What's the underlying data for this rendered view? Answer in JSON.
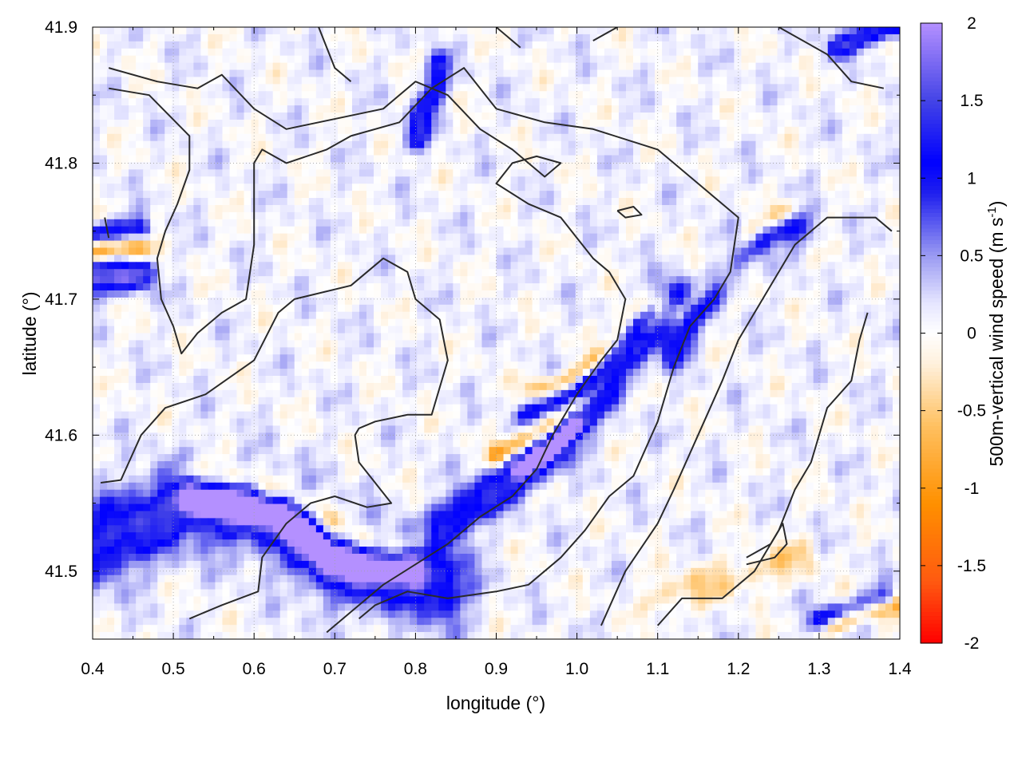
{
  "chart_data": {
    "type": "heatmap",
    "title": "",
    "xlabel": "longitude (°)",
    "ylabel": "latitude (°)",
    "xlim": [
      0.4,
      1.4
    ],
    "ylim": [
      41.45,
      41.9
    ],
    "x_ticks": [
      {
        "value": 0.4,
        "label": "0.4"
      },
      {
        "value": 0.5,
        "label": "0.5"
      },
      {
        "value": 0.6,
        "label": "0.6"
      },
      {
        "value": 0.7,
        "label": "0.7"
      },
      {
        "value": 0.8,
        "label": "0.8"
      },
      {
        "value": 0.9,
        "label": "0.9"
      },
      {
        "value": 1.0,
        "label": "1.0"
      },
      {
        "value": 1.1,
        "label": "1.1"
      },
      {
        "value": 1.2,
        "label": "1.2"
      },
      {
        "value": 1.3,
        "label": "1.3"
      },
      {
        "value": 1.4,
        "label": "1.4"
      }
    ],
    "y_ticks": [
      {
        "value": 41.5,
        "label": "41.5"
      },
      {
        "value": 41.6,
        "label": "41.6"
      },
      {
        "value": 41.7,
        "label": "41.7"
      },
      {
        "value": 41.8,
        "label": "41.8"
      },
      {
        "value": 41.9,
        "label": "41.9"
      }
    ],
    "grid": true,
    "colorbar": {
      "label_main": "500m-vertical wind speed (m s",
      "label_sup": "-1",
      "label_end": ")",
      "range": [
        -2,
        2
      ],
      "ticks": [
        {
          "value": 2,
          "label": "2"
        },
        {
          "value": 1.5,
          "label": "1.5"
        },
        {
          "value": 1,
          "label": "1"
        },
        {
          "value": 0.5,
          "label": "0.5"
        },
        {
          "value": 0,
          "label": "0"
        },
        {
          "value": -0.5,
          "label": "-0.5"
        },
        {
          "value": -1,
          "label": "-1"
        },
        {
          "value": -1.5,
          "label": "-1.5"
        },
        {
          "value": -2,
          "label": "-2"
        }
      ],
      "colors": [
        {
          "value": -2,
          "color": "#ff0000"
        },
        {
          "value": -1.6,
          "color": "#ff5a10"
        },
        {
          "value": -1.1,
          "color": "#ff9000"
        },
        {
          "value": -0.6,
          "color": "#ffc060"
        },
        {
          "value": -0.2,
          "color": "#fff0dc"
        },
        {
          "value": 0,
          "color": "#ffffff"
        },
        {
          "value": 0.2,
          "color": "#e4e4ff"
        },
        {
          "value": 0.5,
          "color": "#9a9af2"
        },
        {
          "value": 0.9,
          "color": "#2020ee"
        },
        {
          "value": 1.1,
          "color": "#0000ff"
        },
        {
          "value": 1.5,
          "color": "#4444e6"
        },
        {
          "value": 2,
          "color": "#b490ff"
        }
      ]
    },
    "features": [
      {
        "name": "band-sw",
        "points": [
          [
            0.41,
            41.52
          ],
          [
            0.46,
            41.535
          ],
          [
            0.52,
            41.55
          ],
          [
            0.59,
            41.545
          ],
          [
            0.64,
            41.535
          ],
          [
            0.69,
            41.51
          ],
          [
            0.74,
            41.5
          ],
          [
            0.79,
            41.5
          ],
          [
            0.83,
            41.49
          ]
        ],
        "value": 1.3,
        "width": 0.02
      },
      {
        "name": "band-sw-core",
        "points": [
          [
            0.52,
            41.553
          ],
          [
            0.58,
            41.548
          ],
          [
            0.64,
            41.54
          ],
          [
            0.69,
            41.51
          ],
          [
            0.73,
            41.503
          ],
          [
            0.8,
            41.502
          ]
        ],
        "value": 1.75,
        "width": 0.008
      },
      {
        "name": "band-sw-orange",
        "points": [
          [
            0.52,
            41.572
          ],
          [
            0.6,
            41.565
          ],
          [
            0.66,
            41.55
          ],
          [
            0.71,
            41.53
          ],
          [
            0.75,
            41.518
          ],
          [
            0.8,
            41.516
          ]
        ],
        "value": -0.8,
        "width": 0.008
      },
      {
        "name": "band-ne",
        "points": [
          [
            0.84,
            41.535
          ],
          [
            0.9,
            41.56
          ],
          [
            0.95,
            41.58
          ],
          [
            1.0,
            41.61
          ],
          [
            1.04,
            41.64
          ],
          [
            1.08,
            41.67
          ],
          [
            1.12,
            41.7
          ]
        ],
        "value": 1.25,
        "width": 0.011
      },
      {
        "name": "band-ne-core",
        "points": [
          [
            0.93,
            41.575
          ],
          [
            0.97,
            41.59
          ],
          [
            1.0,
            41.61
          ]
        ],
        "value": 1.8,
        "width": 0.005
      },
      {
        "name": "band-ne-orange",
        "points": [
          [
            0.9,
            41.585
          ],
          [
            0.95,
            41.6
          ],
          [
            0.98,
            41.61
          ],
          [
            1.01,
            41.625
          ],
          [
            1.04,
            41.65
          ],
          [
            1.07,
            41.675
          ],
          [
            1.1,
            41.69
          ]
        ],
        "value": -0.95,
        "width": 0.006
      },
      {
        "name": "band-ne-blue2",
        "points": [
          [
            0.93,
            41.615
          ],
          [
            0.98,
            41.625
          ],
          [
            1.02,
            41.64
          ],
          [
            1.06,
            41.67
          ],
          [
            1.09,
            41.69
          ]
        ],
        "value": 0.9,
        "width": 0.005
      },
      {
        "name": "band-ne-orange2",
        "points": [
          [
            0.94,
            41.635
          ],
          [
            0.99,
            41.64
          ],
          [
            1.03,
            41.66
          ],
          [
            1.07,
            41.69
          ],
          [
            1.11,
            41.7
          ]
        ],
        "value": -0.6,
        "width": 0.005
      },
      {
        "name": "band-east",
        "points": [
          [
            1.12,
            41.66
          ],
          [
            1.16,
            41.7
          ],
          [
            1.2,
            41.73
          ],
          [
            1.24,
            41.75
          ],
          [
            1.28,
            41.752
          ]
        ],
        "value": 1.0,
        "width": 0.008
      },
      {
        "name": "band-east-orange",
        "points": [
          [
            1.13,
            41.69
          ],
          [
            1.18,
            41.72
          ],
          [
            1.22,
            41.75
          ],
          [
            1.26,
            41.765
          ]
        ],
        "value": -0.6,
        "width": 0.006
      },
      {
        "name": "band-west-blue",
        "points": [
          [
            0.4,
            41.748
          ],
          [
            0.46,
            41.752
          ]
        ],
        "value": 1.1,
        "width": 0.006
      },
      {
        "name": "band-west-orange",
        "points": [
          [
            0.4,
            41.735
          ],
          [
            0.46,
            41.738
          ]
        ],
        "value": -1.0,
        "width": 0.006
      },
      {
        "name": "band-west-purple",
        "points": [
          [
            0.4,
            41.715
          ],
          [
            0.46,
            41.718
          ]
        ],
        "value": 1.6,
        "width": 0.008
      },
      {
        "name": "band-north",
        "points": [
          [
            0.8,
            41.82
          ],
          [
            0.82,
            41.85
          ],
          [
            0.83,
            41.87
          ]
        ],
        "value": 1.1,
        "width": 0.008
      },
      {
        "name": "band-ne-top",
        "points": [
          [
            1.32,
            41.885
          ],
          [
            1.36,
            41.895
          ],
          [
            1.4,
            41.9
          ]
        ],
        "value": 1.2,
        "width": 0.006
      },
      {
        "name": "band-se-orange",
        "points": [
          [
            1.1,
            41.48
          ],
          [
            1.16,
            41.49
          ],
          [
            1.22,
            41.5
          ],
          [
            1.28,
            41.51
          ]
        ],
        "value": -0.45,
        "width": 0.01
      },
      {
        "name": "band-se-blue",
        "points": [
          [
            1.3,
            41.465
          ],
          [
            1.34,
            41.47
          ],
          [
            1.38,
            41.48
          ]
        ],
        "value": 1.0,
        "width": 0.006
      },
      {
        "name": "band-se-orange2",
        "points": [
          [
            1.32,
            41.46
          ],
          [
            1.36,
            41.47
          ],
          [
            1.4,
            41.475
          ]
        ],
        "value": -1.0,
        "width": 0.005
      }
    ],
    "contours": [
      [
        [
          0.41,
          41.565
        ],
        [
          0.435,
          41.567
        ],
        [
          0.46,
          41.6
        ],
        [
          0.49,
          41.62
        ],
        [
          0.54,
          41.63
        ],
        [
          0.6,
          41.655
        ],
        [
          0.63,
          41.69
        ],
        [
          0.65,
          41.7
        ],
        [
          0.72,
          41.71
        ],
        [
          0.76,
          41.73
        ],
        [
          0.79,
          41.72
        ],
        [
          0.8,
          41.7
        ],
        [
          0.83,
          41.685
        ],
        [
          0.84,
          41.655
        ],
        [
          0.82,
          41.615
        ],
        [
          0.79,
          41.615
        ],
        [
          0.75,
          41.61
        ],
        [
          0.73,
          41.605
        ],
        [
          0.725,
          41.6
        ],
        [
          0.73,
          41.58
        ],
        [
          0.77,
          41.55
        ],
        [
          0.74,
          41.547
        ],
        [
          0.7,
          41.555
        ],
        [
          0.67,
          41.55
        ],
        [
          0.64,
          41.535
        ],
        [
          0.61,
          41.51
        ],
        [
          0.605,
          41.485
        ],
        [
          0.56,
          41.475
        ],
        [
          0.52,
          41.465
        ]
      ],
      [
        [
          0.42,
          41.855
        ],
        [
          0.47,
          41.85
        ],
        [
          0.52,
          41.82
        ],
        [
          0.52,
          41.795
        ],
        [
          0.505,
          41.77
        ],
        [
          0.49,
          41.75
        ],
        [
          0.48,
          41.73
        ],
        [
          0.485,
          41.7
        ],
        [
          0.5,
          41.68
        ],
        [
          0.51,
          41.66
        ],
        [
          0.53,
          41.675
        ],
        [
          0.56,
          41.69
        ],
        [
          0.59,
          41.7
        ],
        [
          0.6,
          41.74
        ],
        [
          0.6,
          41.8
        ],
        [
          0.61,
          41.81
        ],
        [
          0.64,
          41.8
        ],
        [
          0.69,
          41.81
        ],
        [
          0.72,
          41.82
        ],
        [
          0.78,
          41.83
        ],
        [
          0.82,
          41.855
        ],
        [
          0.86,
          41.87
        ],
        [
          0.9,
          41.84
        ],
        [
          0.96,
          41.83
        ],
        [
          1.02,
          41.825
        ],
        [
          1.1,
          41.81
        ],
        [
          1.16,
          41.78
        ],
        [
          1.2,
          41.76
        ],
        [
          1.19,
          41.72
        ],
        [
          1.17,
          41.7
        ],
        [
          1.14,
          41.68
        ],
        [
          1.12,
          41.65
        ],
        [
          1.1,
          41.61
        ],
        [
          1.07,
          41.57
        ],
        [
          1.04,
          41.555
        ],
        [
          1.01,
          41.53
        ],
        [
          0.98,
          41.51
        ],
        [
          0.94,
          41.49
        ],
        [
          0.9,
          41.485
        ],
        [
          0.84,
          41.48
        ],
        [
          0.79,
          41.485
        ],
        [
          0.75,
          41.475
        ],
        [
          0.73,
          41.465
        ]
      ],
      [
        [
          0.42,
          41.87
        ],
        [
          0.48,
          41.86
        ],
        [
          0.53,
          41.855
        ],
        [
          0.56,
          41.865
        ],
        [
          0.6,
          41.84
        ],
        [
          0.64,
          41.825
        ],
        [
          0.68,
          41.83
        ],
        [
          0.72,
          41.835
        ],
        [
          0.76,
          41.84
        ],
        [
          0.8,
          41.86
        ],
        [
          0.84,
          41.85
        ],
        [
          0.88,
          41.825
        ],
        [
          0.92,
          41.81
        ],
        [
          0.96,
          41.79
        ],
        [
          0.98,
          41.8
        ],
        [
          0.95,
          41.805
        ],
        [
          0.92,
          41.8
        ],
        [
          0.9,
          41.785
        ],
        [
          0.94,
          41.77
        ],
        [
          0.98,
          41.76
        ],
        [
          1.0,
          41.745
        ],
        [
          1.02,
          41.73
        ],
        [
          1.04,
          41.72
        ],
        [
          1.06,
          41.7
        ],
        [
          1.05,
          41.67
        ],
        [
          1.03,
          41.655
        ],
        [
          1.0,
          41.63
        ],
        [
          0.97,
          41.6
        ],
        [
          0.95,
          41.575
        ],
        [
          0.92,
          41.555
        ],
        [
          0.88,
          41.54
        ],
        [
          0.84,
          41.52
        ],
        [
          0.8,
          41.505
        ],
        [
          0.76,
          41.49
        ],
        [
          0.72,
          41.47
        ],
        [
          0.69,
          41.455
        ]
      ],
      [
        [
          1.03,
          41.46
        ],
        [
          1.06,
          41.5
        ],
        [
          1.1,
          41.535
        ],
        [
          1.12,
          41.56
        ],
        [
          1.15,
          41.6
        ],
        [
          1.18,
          41.64
        ],
        [
          1.2,
          41.67
        ],
        [
          1.23,
          41.7
        ],
        [
          1.27,
          41.74
        ],
        [
          1.31,
          41.76
        ],
        [
          1.37,
          41.76
        ],
        [
          1.39,
          41.75
        ]
      ],
      [
        [
          1.1,
          41.46
        ],
        [
          1.13,
          41.48
        ],
        [
          1.18,
          41.48
        ],
        [
          1.22,
          41.5
        ],
        [
          1.25,
          41.53
        ],
        [
          1.27,
          41.56
        ],
        [
          1.29,
          41.58
        ],
        [
          1.31,
          41.62
        ],
        [
          1.34,
          41.64
        ],
        [
          1.35,
          41.67
        ],
        [
          1.36,
          41.69
        ]
      ],
      [
        [
          1.21,
          41.505
        ],
        [
          1.245,
          41.51
        ],
        [
          1.26,
          41.52
        ],
        [
          1.255,
          41.535
        ],
        [
          1.24,
          41.52
        ],
        [
          1.21,
          41.51
        ]
      ],
      [
        [
          1.05,
          41.765
        ],
        [
          1.07,
          41.768
        ],
        [
          1.08,
          41.762
        ],
        [
          1.06,
          41.76
        ],
        [
          1.05,
          41.765
        ]
      ],
      [
        [
          1.25,
          41.9
        ],
        [
          1.31,
          41.88
        ],
        [
          1.34,
          41.86
        ],
        [
          1.38,
          41.855
        ]
      ],
      [
        [
          0.68,
          41.9
        ],
        [
          0.7,
          41.87
        ],
        [
          0.72,
          41.86
        ]
      ],
      [
        [
          0.9,
          41.9
        ],
        [
          0.93,
          41.885
        ]
      ],
      [
        [
          1.02,
          41.89
        ],
        [
          1.05,
          41.9
        ]
      ],
      [
        [
          0.415,
          41.76
        ],
        [
          0.42,
          41.745
        ]
      ]
    ],
    "colorbar_label": "500m-vertical wind speed (m s-1)"
  }
}
